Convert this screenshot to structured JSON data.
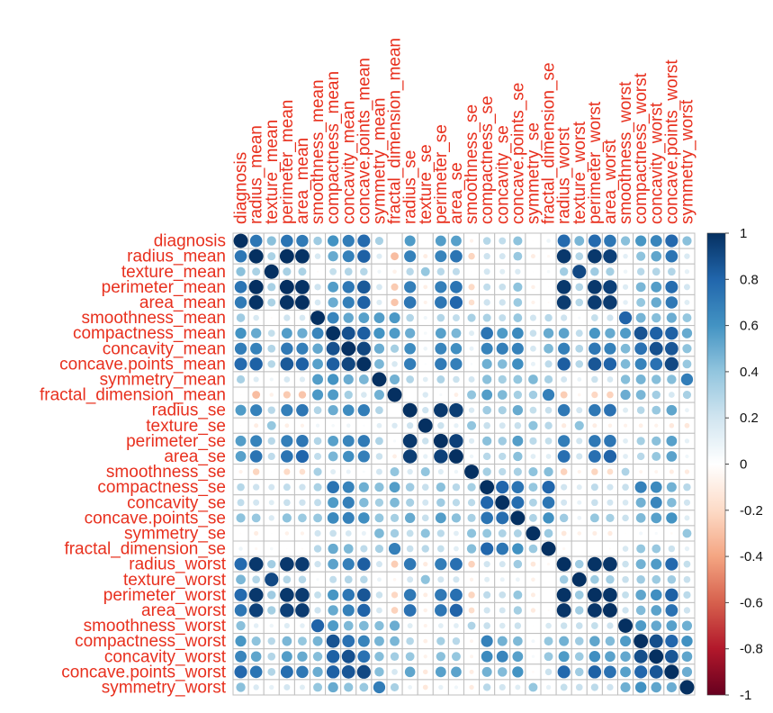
{
  "chart_data": {
    "type": "heatmap",
    "subtype": "correlation-circles",
    "title": "",
    "variables": [
      "diagnosis",
      "radius_mean",
      "texture_mean",
      "perimeter_mean",
      "area_mean",
      "smoothness_mean",
      "compactness_mean",
      "concavity_mean",
      "concave.points_mean",
      "symmetry_mean",
      "fractal_dimension_mean",
      "radius_se",
      "texture_se",
      "perimeter_se",
      "area_se",
      "smoothness_se",
      "compactness_se",
      "concavity_se",
      "concave.points_se",
      "symmetry_se",
      "fractal_dimension_se",
      "radius_worst",
      "texture_worst",
      "perimeter_worst",
      "area_worst",
      "smoothness_worst",
      "compactness_worst",
      "concavity_worst",
      "concave.points_worst",
      "symmetry_worst"
    ],
    "matrix": [
      [
        1,
        0.73,
        0.42,
        0.74,
        0.71,
        0.36,
        0.6,
        0.7,
        0.78,
        0.33,
        -0.01,
        0.57,
        -0.01,
        0.56,
        0.55,
        -0.07,
        0.29,
        0.25,
        0.41,
        -0.01,
        0.08,
        0.78,
        0.46,
        0.78,
        0.73,
        0.42,
        0.59,
        0.66,
        0.79,
        0.42
      ],
      [
        0.73,
        1,
        0.32,
        1,
        0.99,
        0.17,
        0.51,
        0.68,
        0.82,
        0.15,
        -0.31,
        0.68,
        -0.1,
        0.67,
        0.74,
        -0.22,
        0.21,
        0.19,
        0.38,
        -0.1,
        -0.04,
        0.97,
        0.3,
        0.97,
        0.94,
        0.12,
        0.41,
        0.53,
        0.74,
        0.16
      ],
      [
        0.42,
        0.32,
        1,
        0.33,
        0.32,
        -0.02,
        0.24,
        0.3,
        0.29,
        0.07,
        -0.08,
        0.28,
        0.39,
        0.28,
        0.26,
        0.01,
        0.19,
        0.14,
        0.16,
        0.01,
        0.05,
        0.35,
        0.91,
        0.36,
        0.34,
        0.08,
        0.28,
        0.3,
        0.3,
        0.11
      ],
      [
        0.74,
        1,
        0.33,
        1,
        0.99,
        0.21,
        0.56,
        0.72,
        0.85,
        0.18,
        -0.26,
        0.69,
        -0.09,
        0.69,
        0.74,
        -0.2,
        0.25,
        0.23,
        0.41,
        -0.08,
        -0.01,
        0.97,
        0.3,
        0.97,
        0.94,
        0.15,
        0.46,
        0.56,
        0.77,
        0.19
      ],
      [
        0.71,
        0.99,
        0.32,
        0.99,
        1,
        0.18,
        0.5,
        0.69,
        0.82,
        0.15,
        -0.28,
        0.73,
        -0.07,
        0.73,
        0.8,
        -0.17,
        0.21,
        0.21,
        0.37,
        -0.07,
        -0.02,
        0.96,
        0.29,
        0.96,
        0.96,
        0.12,
        0.39,
        0.51,
        0.72,
        0.14
      ],
      [
        0.36,
        0.17,
        -0.02,
        0.21,
        0.18,
        1,
        0.66,
        0.52,
        0.55,
        0.56,
        0.58,
        0.3,
        0.07,
        0.3,
        0.25,
        0.33,
        0.32,
        0.25,
        0.38,
        0.2,
        0.28,
        0.21,
        0.04,
        0.24,
        0.21,
        0.81,
        0.47,
        0.43,
        0.5,
        0.39
      ],
      [
        0.6,
        0.51,
        0.24,
        0.56,
        0.5,
        0.66,
        1,
        0.88,
        0.83,
        0.6,
        0.57,
        0.5,
        0.05,
        0.55,
        0.46,
        0.14,
        0.74,
        0.57,
        0.64,
        0.23,
        0.51,
        0.54,
        0.25,
        0.59,
        0.51,
        0.57,
        0.87,
        0.82,
        0.82,
        0.51
      ],
      [
        0.7,
        0.68,
        0.3,
        0.72,
        0.69,
        0.52,
        0.88,
        1,
        0.92,
        0.5,
        0.34,
        0.63,
        0.08,
        0.66,
        0.62,
        0.1,
        0.67,
        0.69,
        0.68,
        0.18,
        0.45,
        0.69,
        0.3,
        0.73,
        0.68,
        0.45,
        0.75,
        0.88,
        0.86,
        0.41
      ],
      [
        0.78,
        0.82,
        0.29,
        0.85,
        0.82,
        0.55,
        0.83,
        0.92,
        1,
        0.46,
        0.17,
        0.7,
        0.02,
        0.71,
        0.69,
        0.03,
        0.49,
        0.44,
        0.62,
        0.1,
        0.26,
        0.83,
        0.29,
        0.86,
        0.81,
        0.45,
        0.67,
        0.75,
        0.91,
        0.38
      ],
      [
        0.33,
        0.15,
        0.07,
        0.18,
        0.15,
        0.56,
        0.6,
        0.5,
        0.46,
        1,
        0.48,
        0.3,
        0.13,
        0.31,
        0.22,
        0.19,
        0.42,
        0.34,
        0.39,
        0.45,
        0.33,
        0.19,
        0.09,
        0.22,
        0.18,
        0.43,
        0.47,
        0.43,
        0.43,
        0.7
      ],
      [
        -0.01,
        -0.31,
        -0.08,
        -0.26,
        -0.28,
        0.58,
        0.57,
        0.34,
        0.17,
        0.48,
        1,
        0,
        0.16,
        0.04,
        -0.09,
        0.4,
        0.56,
        0.45,
        0.34,
        0.35,
        0.69,
        -0.25,
        -0.05,
        -0.21,
        -0.23,
        0.5,
        0.46,
        0.35,
        0.18,
        0.33
      ],
      [
        0.57,
        0.68,
        0.28,
        0.69,
        0.73,
        0.3,
        0.5,
        0.63,
        0.7,
        0.3,
        0,
        1,
        0.21,
        0.97,
        0.95,
        0.16,
        0.36,
        0.33,
        0.51,
        0.24,
        0.23,
        0.72,
        0.19,
        0.72,
        0.75,
        0.14,
        0.29,
        0.38,
        0.53,
        0.09
      ],
      [
        -0.01,
        -0.1,
        0.39,
        -0.09,
        -0.07,
        0.07,
        0.05,
        0.08,
        0.02,
        0.13,
        0.16,
        0.21,
        1,
        0.22,
        0.11,
        0.4,
        0.23,
        0.19,
        0.23,
        0.41,
        0.28,
        -0.11,
        0.41,
        -0.1,
        -0.08,
        -0.07,
        -0.09,
        -0.07,
        -0.12,
        -0.13
      ],
      [
        0.56,
        0.67,
        0.28,
        0.69,
        0.73,
        0.3,
        0.55,
        0.66,
        0.71,
        0.31,
        0.04,
        0.97,
        0.22,
        1,
        0.94,
        0.15,
        0.42,
        0.36,
        0.56,
        0.27,
        0.24,
        0.7,
        0.2,
        0.72,
        0.73,
        0.13,
        0.34,
        0.42,
        0.55,
        0.11
      ],
      [
        0.55,
        0.74,
        0.26,
        0.74,
        0.8,
        0.25,
        0.46,
        0.62,
        0.69,
        0.22,
        -0.09,
        0.95,
        0.11,
        0.94,
        1,
        0.08,
        0.28,
        0.27,
        0.42,
        0.13,
        0.13,
        0.76,
        0.2,
        0.76,
        0.81,
        0.13,
        0.28,
        0.39,
        0.54,
        0.07
      ],
      [
        -0.07,
        -0.22,
        0.01,
        -0.2,
        -0.17,
        0.33,
        0.14,
        0.1,
        0.03,
        0.19,
        0.4,
        0.16,
        0.4,
        0.15,
        0.08,
        1,
        0.34,
        0.27,
        0.33,
        0.41,
        0.43,
        -0.23,
        -0.07,
        -0.22,
        -0.18,
        0.31,
        -0.06,
        -0.06,
        -0.1,
        -0.11
      ],
      [
        0.29,
        0.21,
        0.19,
        0.25,
        0.21,
        0.32,
        0.74,
        0.67,
        0.49,
        0.42,
        0.56,
        0.36,
        0.23,
        0.42,
        0.28,
        0.34,
        1,
        0.8,
        0.74,
        0.39,
        0.8,
        0.2,
        0.14,
        0.26,
        0.2,
        0.23,
        0.68,
        0.64,
        0.48,
        0.28
      ],
      [
        0.25,
        0.19,
        0.14,
        0.23,
        0.21,
        0.25,
        0.57,
        0.69,
        0.44,
        0.34,
        0.45,
        0.33,
        0.19,
        0.36,
        0.27,
        0.27,
        0.8,
        1,
        0.77,
        0.31,
        0.73,
        0.19,
        0.1,
        0.23,
        0.19,
        0.17,
        0.48,
        0.66,
        0.44,
        0.2
      ],
      [
        0.41,
        0.38,
        0.16,
        0.41,
        0.37,
        0.38,
        0.64,
        0.68,
        0.62,
        0.39,
        0.34,
        0.51,
        0.23,
        0.56,
        0.42,
        0.33,
        0.74,
        0.77,
        1,
        0.31,
        0.61,
        0.36,
        0.09,
        0.39,
        0.34,
        0.22,
        0.45,
        0.55,
        0.6,
        0.14
      ],
      [
        -0.01,
        -0.1,
        0.01,
        -0.08,
        -0.07,
        0.2,
        0.23,
        0.18,
        0.1,
        0.45,
        0.35,
        0.24,
        0.41,
        0.27,
        0.13,
        0.41,
        0.39,
        0.31,
        0.31,
        1,
        0.37,
        -0.13,
        -0.08,
        -0.1,
        -0.11,
        -0.01,
        0.06,
        0.04,
        -0.03,
        0.39
      ],
      [
        0.08,
        -0.04,
        0.05,
        -0.01,
        -0.02,
        0.28,
        0.51,
        0.45,
        0.26,
        0.33,
        0.69,
        0.23,
        0.28,
        0.24,
        0.13,
        0.43,
        0.8,
        0.73,
        0.61,
        0.37,
        1,
        -0.04,
        -0.0,
        -0.0,
        -0.02,
        0.17,
        0.39,
        0.38,
        0.22,
        0.11
      ],
      [
        0.78,
        0.97,
        0.35,
        0.97,
        0.96,
        0.21,
        0.54,
        0.69,
        0.83,
        0.19,
        -0.25,
        0.72,
        -0.11,
        0.7,
        0.76,
        -0.23,
        0.2,
        0.19,
        0.36,
        -0.13,
        -0.04,
        1,
        0.36,
        0.99,
        0.98,
        0.22,
        0.48,
        0.57,
        0.79,
        0.24
      ],
      [
        0.46,
        0.3,
        0.91,
        0.3,
        0.29,
        0.04,
        0.25,
        0.3,
        0.29,
        0.09,
        -0.05,
        0.19,
        0.41,
        0.2,
        0.2,
        -0.07,
        0.14,
        0.1,
        0.09,
        -0.08,
        -0.0,
        0.36,
        1,
        0.37,
        0.35,
        0.23,
        0.36,
        0.37,
        0.36,
        0.23
      ],
      [
        0.78,
        0.97,
        0.36,
        0.97,
        0.96,
        0.24,
        0.59,
        0.73,
        0.86,
        0.22,
        -0.21,
        0.72,
        -0.1,
        0.72,
        0.76,
        -0.22,
        0.26,
        0.23,
        0.39,
        -0.1,
        -0.0,
        0.99,
        0.37,
        1,
        0.98,
        0.24,
        0.53,
        0.62,
        0.82,
        0.27
      ],
      [
        0.73,
        0.94,
        0.34,
        0.94,
        0.96,
        0.21,
        0.51,
        0.68,
        0.81,
        0.18,
        -0.23,
        0.75,
        -0.08,
        0.73,
        0.81,
        -0.18,
        0.2,
        0.19,
        0.34,
        -0.11,
        -0.02,
        0.98,
        0.35,
        0.98,
        1,
        0.21,
        0.44,
        0.54,
        0.75,
        0.21
      ],
      [
        0.42,
        0.12,
        0.08,
        0.15,
        0.12,
        0.81,
        0.57,
        0.45,
        0.45,
        0.43,
        0.5,
        0.14,
        -0.07,
        0.13,
        0.13,
        0.31,
        0.23,
        0.17,
        0.22,
        -0.01,
        0.17,
        0.22,
        0.23,
        0.24,
        0.21,
        1,
        0.57,
        0.52,
        0.55,
        0.49
      ],
      [
        0.59,
        0.41,
        0.28,
        0.46,
        0.39,
        0.47,
        0.87,
        0.75,
        0.67,
        0.47,
        0.46,
        0.29,
        -0.09,
        0.34,
        0.28,
        -0.06,
        0.68,
        0.48,
        0.45,
        0.06,
        0.39,
        0.48,
        0.36,
        0.53,
        0.44,
        0.57,
        1,
        0.89,
        0.8,
        0.61
      ],
      [
        0.66,
        0.53,
        0.3,
        0.56,
        0.51,
        0.43,
        0.82,
        0.88,
        0.75,
        0.43,
        0.35,
        0.38,
        -0.07,
        0.42,
        0.39,
        -0.06,
        0.64,
        0.66,
        0.55,
        0.04,
        0.38,
        0.57,
        0.37,
        0.62,
        0.54,
        0.52,
        0.89,
        1,
        0.86,
        0.53
      ],
      [
        0.79,
        0.74,
        0.3,
        0.77,
        0.72,
        0.5,
        0.82,
        0.86,
        0.91,
        0.43,
        0.18,
        0.53,
        -0.12,
        0.55,
        0.54,
        -0.1,
        0.48,
        0.44,
        0.6,
        -0.03,
        0.22,
        0.79,
        0.36,
        0.82,
        0.75,
        0.55,
        0.8,
        0.86,
        1,
        0.5
      ],
      [
        0.42,
        0.16,
        0.11,
        0.19,
        0.14,
        0.39,
        0.51,
        0.41,
        0.38,
        0.7,
        0.33,
        0.09,
        -0.13,
        0.11,
        0.07,
        -0.11,
        0.28,
        0.2,
        0.14,
        0.39,
        0.11,
        0.24,
        0.23,
        0.27,
        0.21,
        0.49,
        0.61,
        0.53,
        0.5,
        1
      ]
    ],
    "colorbar": {
      "ticks": [
        1,
        0.8,
        0.6,
        0.4,
        0.2,
        0,
        -0.2,
        -0.4,
        -0.6,
        -0.8,
        -1
      ],
      "tick_labels": [
        "1",
        "0.8",
        "0.6",
        "0.4",
        "0.2",
        "0",
        "-0.2",
        "-0.4",
        "-0.6",
        "-0.8",
        "-1"
      ],
      "range": [
        -1,
        1
      ],
      "colors": [
        "#67001f",
        "#b2182b",
        "#d6604d",
        "#f4a582",
        "#fddbc7",
        "#ffffff",
        "#d1e5f0",
        "#92c5de",
        "#4393c3",
        "#2166ac",
        "#053061"
      ]
    },
    "label_color": "#e8301e",
    "grid_color": "#bfbfbf"
  }
}
